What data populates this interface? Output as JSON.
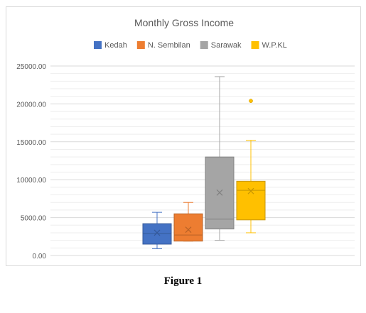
{
  "caption": "Figure 1",
  "chart_data": {
    "type": "box",
    "title": "Monthly Gross Income",
    "xlabel": "",
    "ylabel": "",
    "ylim": [
      0,
      25000
    ],
    "yticks": [
      0,
      5000,
      10000,
      15000,
      20000,
      25000
    ],
    "ytick_labels": [
      "0.00",
      "5000.00",
      "10000.00",
      "15000.00",
      "20000.00",
      "25000.00"
    ],
    "grid": true,
    "legend_position": "top",
    "series": [
      {
        "name": "Kedah",
        "color": "#4472C4",
        "min": 900,
        "q1": 1500,
        "median": 2900,
        "q3": 4200,
        "max": 5700,
        "mean": 3000,
        "outliers": []
      },
      {
        "name": "N. Sembilan",
        "color": "#ED7D31",
        "min": 1900,
        "q1": 1900,
        "median": 2700,
        "q3": 5500,
        "max": 7000,
        "mean": 3400,
        "outliers": []
      },
      {
        "name": "Sarawak",
        "color": "#A5A5A5",
        "min": 2000,
        "q1": 3500,
        "median": 4800,
        "q3": 13000,
        "max": 23600,
        "mean": 8300,
        "outliers": []
      },
      {
        "name": "W.P.KL",
        "color": "#FFC000",
        "min": 3000,
        "q1": 4700,
        "median": 8600,
        "q3": 9800,
        "max": 15200,
        "mean": 8500,
        "outliers": [
          20400
        ]
      }
    ]
  }
}
